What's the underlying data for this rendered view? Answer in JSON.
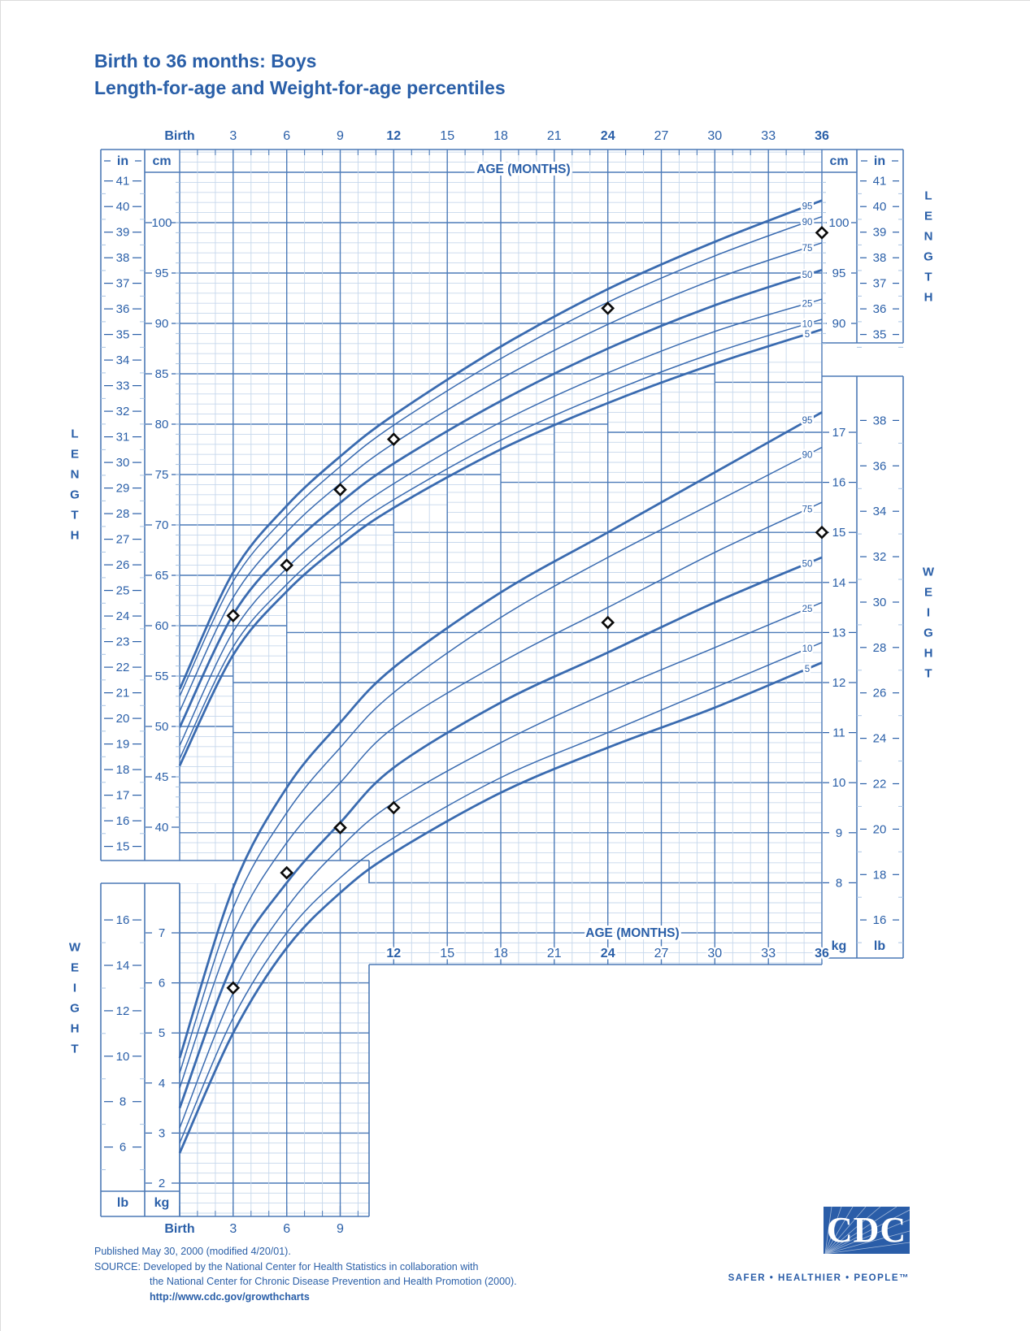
{
  "header": {
    "title_line1": "Birth to 36 months: Boys",
    "title_line2": "Length-for-age and Weight-for-age percentiles"
  },
  "footer": {
    "line1": "Published May 30, 2000 (modified 4/20/01).",
    "line2": "SOURCE: Developed by the National Center for Health Statistics in collaboration with",
    "line3": "the National Center for Chronic Disease Prevention and Health Promotion (2000).",
    "line4": "http://www.cdc.gov/growthcharts"
  },
  "logo": {
    "text": "CDC",
    "tagline": "SAFER • HEALTHIER • PEOPLE™"
  },
  "chart_data": {
    "type": "line",
    "title": "Birth to 36 months: Boys — Length-for-age and Weight-for-age percentiles",
    "age_axis": {
      "label": "AGE (MONTHS)",
      "top_ticks": [
        "Birth",
        "3",
        "6",
        "9",
        "12",
        "15",
        "18",
        "21",
        "24",
        "27",
        "30",
        "33",
        "36"
      ],
      "top_bold": [
        "Birth",
        "12",
        "24",
        "36"
      ],
      "inner_bottom_ticks": [
        "12",
        "15",
        "18",
        "21",
        "24",
        "27",
        "30",
        "33",
        "36"
      ],
      "inner_bottom_bold": [
        "12",
        "24",
        "36"
      ],
      "bottom_ticks": [
        "Birth",
        "3",
        "6",
        "9"
      ],
      "bottom_bold": [
        "Birth"
      ]
    },
    "length_axis": {
      "label": "LENGTH",
      "unit_cm": "cm",
      "unit_in": "in",
      "left_cm_ticks": [
        100,
        95,
        90,
        85,
        80,
        75,
        70,
        65,
        60,
        55,
        50,
        45,
        40
      ],
      "left_in_ticks": [
        41,
        40,
        39,
        38,
        37,
        36,
        35,
        34,
        33,
        32,
        31,
        30,
        29,
        28,
        27,
        26,
        25,
        24,
        23,
        22,
        21,
        20,
        19,
        18,
        17,
        16,
        15
      ],
      "right_cm_ticks": [
        100,
        95,
        90
      ],
      "right_in_ticks": [
        41,
        40,
        39,
        38,
        37,
        36,
        35
      ]
    },
    "weight_axis": {
      "label": "WEIGHT",
      "unit_kg": "kg",
      "unit_lb": "lb",
      "right_kg_ticks": [
        17,
        16,
        15,
        14,
        13,
        12,
        11,
        10,
        9,
        8
      ],
      "right_lb_ticks": [
        38,
        36,
        34,
        32,
        30,
        28,
        26,
        24,
        22,
        20,
        18,
        16
      ],
      "left_kg_ticks": [
        7,
        6,
        5,
        4,
        3,
        2
      ],
      "left_lb_ticks": [
        16,
        14,
        12,
        10,
        8,
        6
      ]
    },
    "percentile_labels": [
      "95",
      "90",
      "75",
      "50",
      "25",
      "10",
      "5"
    ],
    "thick_percentiles": [
      "95",
      "50",
      "5"
    ],
    "months": [
      0,
      3,
      6,
      9,
      12,
      18,
      24,
      30,
      36
    ],
    "length_percentiles_cm": {
      "5": [
        46.1,
        57.1,
        63.4,
        68.0,
        71.7,
        77.5,
        82.1,
        86.0,
        89.4
      ],
      "10": [
        46.8,
        57.9,
        64.1,
        68.8,
        72.5,
        78.4,
        83.1,
        87.1,
        90.4
      ],
      "25": [
        48.1,
        59.4,
        65.7,
        70.3,
        74.1,
        80.2,
        85.1,
        89.2,
        92.4
      ],
      "50": [
        49.9,
        61.1,
        67.5,
        72.2,
        76.1,
        82.3,
        87.5,
        91.8,
        95.3
      ],
      "75": [
        51.5,
        62.8,
        69.3,
        74.1,
        78.1,
        84.5,
        89.9,
        94.4,
        98.0
      ],
      "90": [
        53.0,
        64.4,
        70.9,
        75.8,
        79.9,
        86.5,
        92.1,
        96.7,
        100.6
      ],
      "95": [
        53.7,
        65.3,
        71.9,
        76.8,
        80.9,
        87.7,
        93.4,
        98.1,
        102.2
      ]
    },
    "weight_percentiles_kg": {
      "5": [
        2.6,
        5.0,
        6.7,
        7.8,
        8.6,
        9.8,
        10.7,
        11.5,
        12.4
      ],
      "10": [
        2.8,
        5.3,
        7.0,
        8.1,
        8.9,
        10.1,
        11.0,
        11.9,
        12.8
      ],
      "25": [
        3.1,
        5.8,
        7.5,
        8.7,
        9.6,
        10.8,
        11.8,
        12.7,
        13.6
      ],
      "50": [
        3.5,
        6.4,
        8.0,
        9.2,
        10.3,
        11.6,
        12.6,
        13.6,
        14.5
      ],
      "75": [
        3.9,
        7.0,
        8.8,
        10.0,
        11.1,
        12.4,
        13.5,
        14.6,
        15.6
      ],
      "90": [
        4.2,
        7.5,
        9.4,
        10.7,
        11.8,
        13.3,
        14.5,
        15.6,
        16.7
      ],
      "95": [
        4.5,
        7.9,
        9.9,
        11.2,
        12.3,
        13.8,
        15.0,
        16.2,
        17.4
      ]
    },
    "patient_points": {
      "marker": "diamond",
      "length_cm": [
        [
          3,
          61
        ],
        [
          6,
          66
        ],
        [
          9,
          73.5
        ],
        [
          12,
          78.5
        ],
        [
          24,
          91.5
        ],
        [
          36,
          99
        ]
      ],
      "weight_kg": [
        [
          3,
          5.9
        ],
        [
          6,
          8.2
        ],
        [
          9,
          9.1
        ],
        [
          12,
          9.5
        ],
        [
          24,
          13.2
        ],
        [
          36,
          15
        ]
      ]
    },
    "layout_hints": {
      "grid": true,
      "x_range_months": [
        0,
        36
      ],
      "length_cm_range": [
        40,
        107
      ],
      "weight_kg_range": [
        2,
        18
      ]
    },
    "colors": {
      "text": "#2a5fa8",
      "grid_major": "#4d7bb8",
      "grid_minor": "#c6d7ec",
      "tick_minor": "#a9c4e4",
      "curve": "#3a6bb0",
      "border": "#4c79b6",
      "point_stroke": "#0b0b0b",
      "logo_bg": "#2a5da8"
    }
  }
}
